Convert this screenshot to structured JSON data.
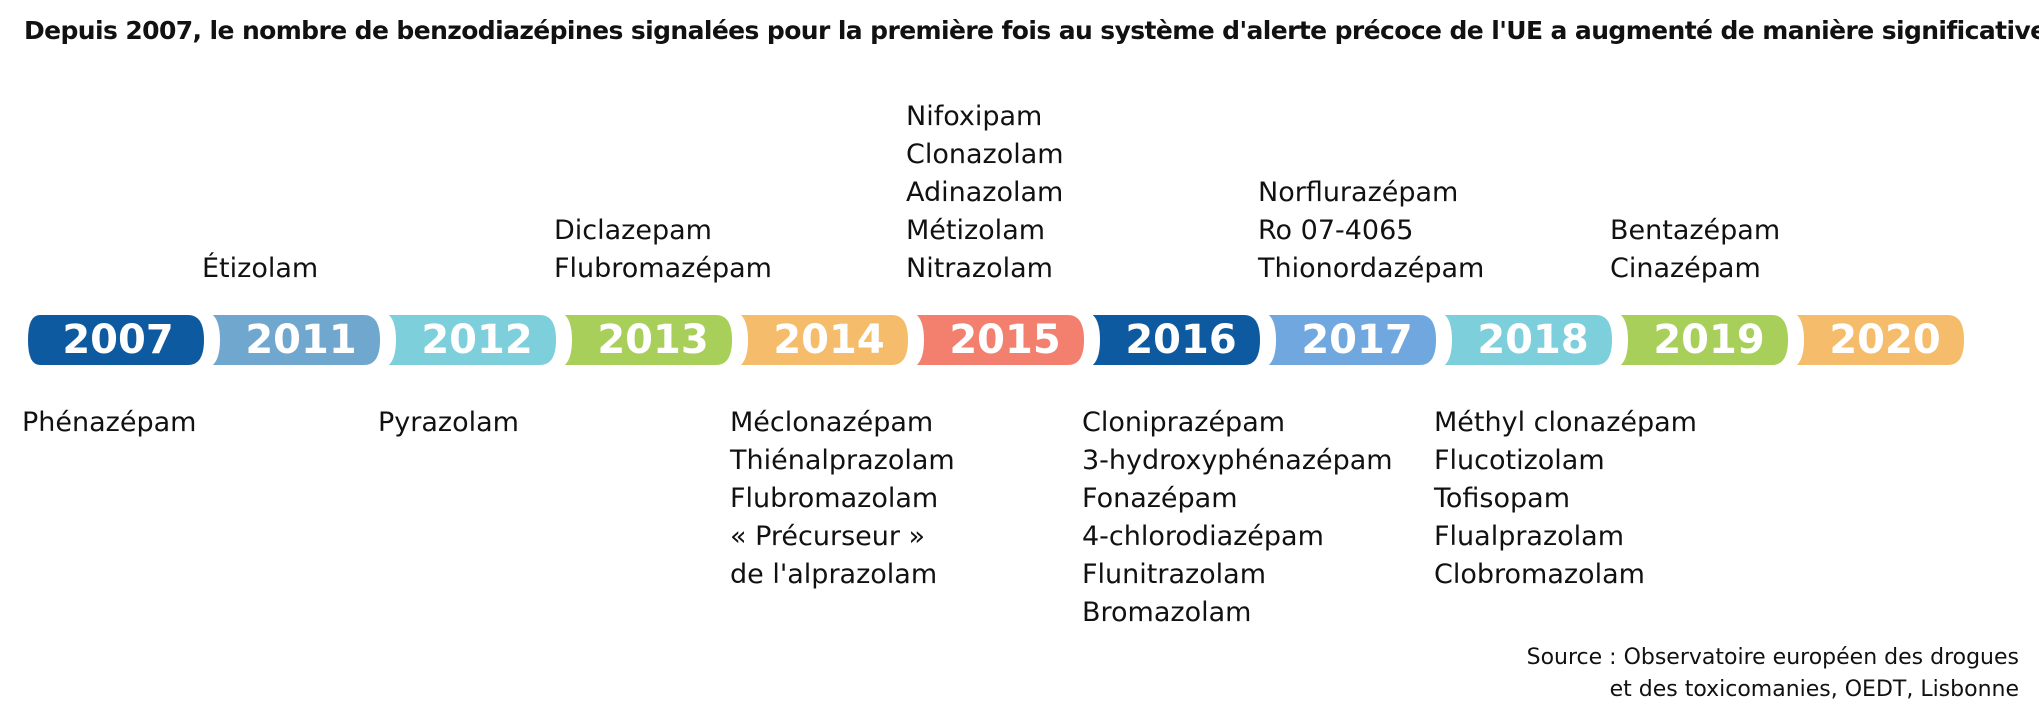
{
  "title": "Depuis 2007, le nombre de benzodiazépines signalées pour la première fois au système d'alerte précoce de l'UE a augmenté de manière significative.",
  "timeline": [
    {
      "year": "2007",
      "color": "#0e5aa0",
      "above": [],
      "below": [
        "Phénazépam"
      ]
    },
    {
      "year": "2011",
      "color": "#6fa7cf",
      "above": [
        "Étizolam"
      ],
      "below": []
    },
    {
      "year": "2012",
      "color": "#7ecfdc",
      "above": [],
      "below": [
        "Pyrazolam"
      ]
    },
    {
      "year": "2013",
      "color": "#a8cf5a",
      "above": [
        "Diclazepam",
        "Flubromazépam"
      ],
      "below": []
    },
    {
      "year": "2014",
      "color": "#f5bd6b",
      "above": [],
      "below": [
        "Méclonazépam",
        "Thiénalprazolam",
        "Flubromazolam",
        "« Précurseur »",
        "de l'alprazolam"
      ]
    },
    {
      "year": "2015",
      "color": "#f3806f",
      "above": [
        "Nifoxipam",
        "Clonazolam",
        "Adinazolam",
        "Métizolam",
        "Nitrazolam"
      ],
      "below": []
    },
    {
      "year": "2016",
      "color": "#0e5aa0",
      "above": [],
      "below": [
        "Clonipraz épam",
        "3-hydroxyphénazépam",
        "Fonazépam",
        "4-chlorodiazépam",
        "Flunitrazolam",
        "Bromazolam"
      ]
    },
    {
      "year": "2017",
      "color": "#6fa7de",
      "above": [
        "Norflurazépam",
        "Ro 07-4065",
        "Thionordazépam"
      ],
      "below": []
    },
    {
      "year": "2018",
      "color": "#7ecfdc",
      "above": [],
      "below": [
        "Méthyl clonazépam",
        "Flucotizolam",
        "Tofisopam",
        "Flualprazolam",
        "Clobromazolam"
      ]
    },
    {
      "year": "2019",
      "color": "#a8cf5a",
      "above": [
        "Bentazépam",
        "Cinazépam"
      ],
      "below": []
    },
    {
      "year": "2020",
      "color": "#f5bd6b",
      "above": [],
      "below": []
    }
  ],
  "source": {
    "line1": "Source : Observatoire européen des drogues",
    "line2": "et des toxicomanies, OEDT, Lisbonne"
  }
}
